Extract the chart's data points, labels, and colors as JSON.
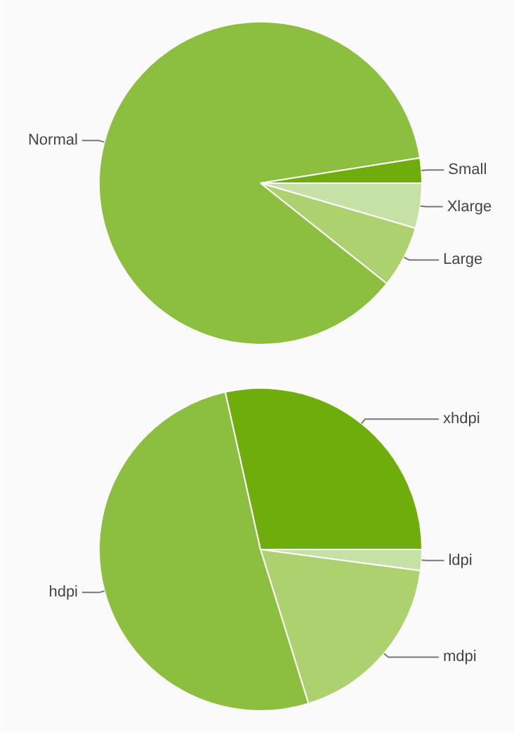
{
  "chart_data": [
    {
      "type": "pie",
      "categories": [
        "Xlarge",
        "Large",
        "Normal",
        "Small"
      ],
      "values": [
        4.5,
        6.2,
        86.8,
        2.5
      ],
      "colors": [
        "#c5e1a5",
        "#aed16f",
        "#8cbf3f",
        "#6fad0c"
      ]
    },
    {
      "type": "pie",
      "categories": [
        "ldpi",
        "mdpi",
        "hdpi",
        "xhdpi"
      ],
      "values": [
        2.1,
        18.1,
        51.3,
        28.5
      ],
      "colors": [
        "#c5e1a5",
        "#aed16f",
        "#8cbf3f",
        "#6fad0c"
      ]
    }
  ]
}
